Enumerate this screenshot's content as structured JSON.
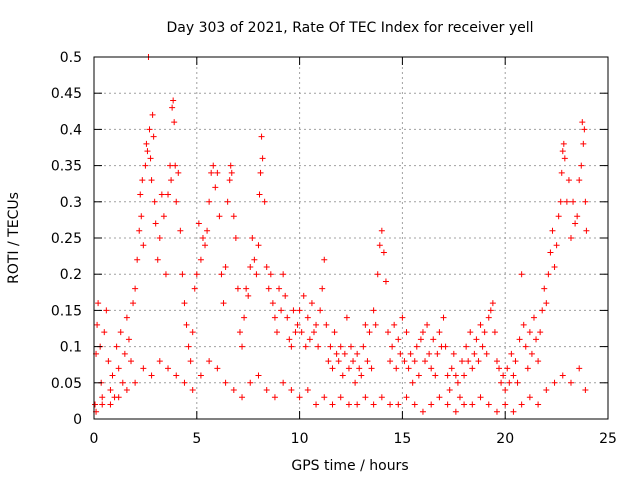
{
  "chart_data": {
    "type": "scatter",
    "title": "Day 303 of 2021, Rate Of TEC Index for receiver yell",
    "xlabel": "GPS time / hours",
    "ylabel": "ROTI / TECUs",
    "xlim": [
      0,
      25
    ],
    "ylim": [
      0,
      0.5
    ],
    "xticks": [
      0,
      5,
      10,
      15,
      20,
      25
    ],
    "yticks": [
      0,
      0.05,
      0.1,
      0.15,
      0.2,
      0.25,
      0.3,
      0.35,
      0.4,
      0.45,
      0.5
    ],
    "ytick_labels": [
      "0",
      "0.05",
      "0.1",
      "0.15",
      "0.2",
      "0.25",
      "0.3",
      "0.35",
      "0.4",
      "0.45",
      "0.5"
    ],
    "grid": true,
    "marker": "+",
    "color": "#ff0000",
    "series": [
      {
        "points": [
          [
            0.05,
            0.02
          ],
          [
            0.1,
            0.09
          ],
          [
            0.15,
            0.13
          ],
          [
            0.2,
            0.16
          ],
          [
            0.3,
            0.1
          ],
          [
            0.35,
            0.05
          ],
          [
            0.4,
            0.03
          ],
          [
            0.5,
            0.12
          ],
          [
            0.6,
            0.15
          ],
          [
            0.7,
            0.08
          ],
          [
            0.8,
            0.04
          ],
          [
            0.9,
            0.06
          ],
          [
            1.0,
            0.03
          ],
          [
            1.1,
            0.1
          ],
          [
            1.2,
            0.07
          ],
          [
            1.3,
            0.12
          ],
          [
            1.4,
            0.05
          ],
          [
            1.5,
            0.09
          ],
          [
            1.6,
            0.14
          ],
          [
            1.7,
            0.11
          ],
          [
            1.8,
            0.08
          ],
          [
            1.9,
            0.16
          ],
          [
            2.0,
            0.18
          ],
          [
            2.1,
            0.22
          ],
          [
            2.2,
            0.26
          ],
          [
            2.25,
            0.31
          ],
          [
            2.3,
            0.28
          ],
          [
            2.35,
            0.33
          ],
          [
            2.4,
            0.24
          ],
          [
            2.5,
            0.35
          ],
          [
            2.55,
            0.38
          ],
          [
            2.6,
            0.37
          ],
          [
            2.65,
            0.5
          ],
          [
            2.7,
            0.4
          ],
          [
            2.75,
            0.36
          ],
          [
            2.8,
            0.33
          ],
          [
            2.85,
            0.42
          ],
          [
            2.9,
            0.39
          ],
          [
            2.95,
            0.3
          ],
          [
            3.0,
            0.27
          ],
          [
            3.1,
            0.22
          ],
          [
            3.2,
            0.25
          ],
          [
            3.3,
            0.31
          ],
          [
            3.4,
            0.28
          ],
          [
            3.5,
            0.2
          ],
          [
            3.6,
            0.31
          ],
          [
            3.7,
            0.35
          ],
          [
            3.75,
            0.33
          ],
          [
            3.8,
            0.43
          ],
          [
            3.85,
            0.44
          ],
          [
            3.9,
            0.41
          ],
          [
            3.95,
            0.35
          ],
          [
            4.0,
            0.3
          ],
          [
            4.1,
            0.34
          ],
          [
            4.2,
            0.26
          ],
          [
            4.3,
            0.2
          ],
          [
            4.4,
            0.16
          ],
          [
            4.5,
            0.13
          ],
          [
            4.6,
            0.1
          ],
          [
            4.7,
            0.08
          ],
          [
            4.8,
            0.12
          ],
          [
            4.9,
            0.18
          ],
          [
            5.0,
            0.2
          ],
          [
            5.1,
            0.27
          ],
          [
            5.2,
            0.22
          ],
          [
            5.3,
            0.25
          ],
          [
            5.4,
            0.24
          ],
          [
            5.5,
            0.26
          ],
          [
            5.6,
            0.3
          ],
          [
            5.7,
            0.34
          ],
          [
            5.8,
            0.35
          ],
          [
            5.9,
            0.32
          ],
          [
            6.0,
            0.34
          ],
          [
            6.1,
            0.28
          ],
          [
            6.2,
            0.2
          ],
          [
            6.3,
            0.16
          ],
          [
            6.4,
            0.21
          ],
          [
            6.5,
            0.3
          ],
          [
            6.6,
            0.33
          ],
          [
            6.65,
            0.35
          ],
          [
            6.7,
            0.34
          ],
          [
            6.8,
            0.28
          ],
          [
            6.9,
            0.25
          ],
          [
            7.0,
            0.18
          ],
          [
            7.1,
            0.12
          ],
          [
            7.2,
            0.1
          ],
          [
            7.3,
            0.14
          ],
          [
            7.4,
            0.18
          ],
          [
            7.5,
            0.17
          ],
          [
            7.6,
            0.21
          ],
          [
            7.7,
            0.25
          ],
          [
            7.8,
            0.22
          ],
          [
            7.9,
            0.2
          ],
          [
            8.0,
            0.24
          ],
          [
            8.05,
            0.31
          ],
          [
            8.1,
            0.34
          ],
          [
            8.15,
            0.39
          ],
          [
            8.2,
            0.36
          ],
          [
            8.3,
            0.3
          ],
          [
            8.4,
            0.21
          ],
          [
            8.5,
            0.18
          ],
          [
            8.6,
            0.2
          ],
          [
            8.7,
            0.16
          ],
          [
            8.8,
            0.14
          ],
          [
            8.9,
            0.12
          ],
          [
            9.0,
            0.18
          ],
          [
            9.1,
            0.15
          ],
          [
            9.2,
            0.2
          ],
          [
            9.3,
            0.17
          ],
          [
            9.4,
            0.14
          ],
          [
            9.5,
            0.11
          ],
          [
            9.6,
            0.1
          ],
          [
            9.7,
            0.15
          ],
          [
            9.8,
            0.12
          ],
          [
            9.9,
            0.13
          ],
          [
            10.0,
            0.15
          ],
          [
            10.1,
            0.12
          ],
          [
            10.2,
            0.17
          ],
          [
            10.3,
            0.1
          ],
          [
            10.4,
            0.14
          ],
          [
            10.5,
            0.11
          ],
          [
            10.6,
            0.16
          ],
          [
            10.7,
            0.12
          ],
          [
            10.8,
            0.13
          ],
          [
            10.9,
            0.1
          ],
          [
            11.0,
            0.15
          ],
          [
            11.1,
            0.18
          ],
          [
            11.2,
            0.22
          ],
          [
            11.3,
            0.13
          ],
          [
            11.4,
            0.08
          ],
          [
            11.5,
            0.1
          ],
          [
            11.6,
            0.07
          ],
          [
            11.7,
            0.12
          ],
          [
            11.8,
            0.09
          ],
          [
            11.9,
            0.08
          ],
          [
            12.0,
            0.1
          ],
          [
            12.1,
            0.06
          ],
          [
            12.2,
            0.09
          ],
          [
            12.3,
            0.14
          ],
          [
            12.4,
            0.07
          ],
          [
            12.5,
            0.1
          ],
          [
            12.6,
            0.08
          ],
          [
            12.7,
            0.05
          ],
          [
            12.8,
            0.09
          ],
          [
            12.9,
            0.07
          ],
          [
            13.0,
            0.06
          ],
          [
            13.1,
            0.1
          ],
          [
            13.2,
            0.13
          ],
          [
            13.3,
            0.08
          ],
          [
            13.4,
            0.12
          ],
          [
            13.5,
            0.07
          ],
          [
            13.6,
            0.15
          ],
          [
            13.7,
            0.13
          ],
          [
            13.8,
            0.2
          ],
          [
            13.9,
            0.24
          ],
          [
            14.0,
            0.26
          ],
          [
            14.1,
            0.23
          ],
          [
            14.2,
            0.19
          ],
          [
            14.3,
            0.12
          ],
          [
            14.4,
            0.08
          ],
          [
            14.5,
            0.1
          ],
          [
            14.6,
            0.13
          ],
          [
            14.7,
            0.07
          ],
          [
            14.8,
            0.11
          ],
          [
            14.9,
            0.09
          ],
          [
            15.0,
            0.14
          ],
          [
            15.1,
            0.08
          ],
          [
            15.2,
            0.12
          ],
          [
            15.3,
            0.07
          ],
          [
            15.4,
            0.09
          ],
          [
            15.5,
            0.05
          ],
          [
            15.6,
            0.08
          ],
          [
            15.7,
            0.1
          ],
          [
            15.8,
            0.06
          ],
          [
            15.9,
            0.11
          ],
          [
            16.0,
            0.12
          ],
          [
            16.1,
            0.08
          ],
          [
            16.2,
            0.13
          ],
          [
            16.3,
            0.09
          ],
          [
            16.4,
            0.07
          ],
          [
            16.5,
            0.11
          ],
          [
            16.6,
            0.06
          ],
          [
            16.7,
            0.09
          ],
          [
            16.8,
            0.12
          ],
          [
            16.9,
            0.1
          ],
          [
            17.0,
            0.14
          ],
          [
            17.1,
            0.1
          ],
          [
            17.2,
            0.06
          ],
          [
            17.3,
            0.04
          ],
          [
            17.4,
            0.07
          ],
          [
            17.5,
            0.09
          ],
          [
            17.6,
            0.06
          ],
          [
            17.7,
            0.05
          ],
          [
            17.8,
            0.03
          ],
          [
            17.9,
            0.08
          ],
          [
            18.0,
            0.06
          ],
          [
            18.1,
            0.1
          ],
          [
            18.2,
            0.08
          ],
          [
            18.3,
            0.12
          ],
          [
            18.4,
            0.07
          ],
          [
            18.5,
            0.09
          ],
          [
            18.6,
            0.11
          ],
          [
            18.7,
            0.08
          ],
          [
            18.8,
            0.13
          ],
          [
            18.9,
            0.1
          ],
          [
            19.0,
            0.12
          ],
          [
            19.1,
            0.09
          ],
          [
            19.2,
            0.14
          ],
          [
            19.3,
            0.15
          ],
          [
            19.4,
            0.16
          ],
          [
            19.5,
            0.12
          ],
          [
            19.6,
            0.08
          ],
          [
            19.7,
            0.07
          ],
          [
            19.8,
            0.05
          ],
          [
            19.9,
            0.06
          ],
          [
            20.0,
            0.04
          ],
          [
            20.1,
            0.07
          ],
          [
            20.2,
            0.05
          ],
          [
            20.3,
            0.09
          ],
          [
            20.4,
            0.06
          ],
          [
            20.5,
            0.08
          ],
          [
            20.6,
            0.05
          ],
          [
            20.7,
            0.11
          ],
          [
            20.8,
            0.2
          ],
          [
            20.9,
            0.13
          ],
          [
            21.0,
            0.1
          ],
          [
            21.1,
            0.07
          ],
          [
            21.2,
            0.12
          ],
          [
            21.3,
            0.09
          ],
          [
            21.4,
            0.14
          ],
          [
            21.5,
            0.11
          ],
          [
            21.6,
            0.08
          ],
          [
            21.7,
            0.12
          ],
          [
            21.8,
            0.15
          ],
          [
            21.9,
            0.18
          ],
          [
            22.0,
            0.16
          ],
          [
            22.1,
            0.2
          ],
          [
            22.2,
            0.23
          ],
          [
            22.3,
            0.26
          ],
          [
            22.4,
            0.21
          ],
          [
            22.5,
            0.24
          ],
          [
            22.6,
            0.28
          ],
          [
            22.7,
            0.3
          ],
          [
            22.75,
            0.34
          ],
          [
            22.8,
            0.37
          ],
          [
            22.85,
            0.38
          ],
          [
            22.9,
            0.36
          ],
          [
            23.0,
            0.3
          ],
          [
            23.1,
            0.33
          ],
          [
            23.2,
            0.25
          ],
          [
            23.3,
            0.3
          ],
          [
            23.4,
            0.27
          ],
          [
            23.5,
            0.28
          ],
          [
            23.6,
            0.33
          ],
          [
            23.7,
            0.35
          ],
          [
            23.75,
            0.41
          ],
          [
            23.8,
            0.38
          ],
          [
            23.85,
            0.4
          ],
          [
            23.9,
            0.3
          ],
          [
            23.95,
            0.26
          ],
          [
            0.1,
            0.01
          ],
          [
            0.4,
            0.02
          ],
          [
            0.8,
            0.02
          ],
          [
            1.2,
            0.03
          ],
          [
            1.6,
            0.04
          ],
          [
            2.0,
            0.05
          ],
          [
            2.4,
            0.07
          ],
          [
            2.8,
            0.06
          ],
          [
            3.2,
            0.08
          ],
          [
            3.6,
            0.07
          ],
          [
            4.0,
            0.06
          ],
          [
            4.4,
            0.05
          ],
          [
            4.8,
            0.04
          ],
          [
            5.2,
            0.06
          ],
          [
            5.6,
            0.08
          ],
          [
            6.0,
            0.07
          ],
          [
            6.4,
            0.05
          ],
          [
            6.8,
            0.04
          ],
          [
            7.2,
            0.03
          ],
          [
            7.6,
            0.05
          ],
          [
            8.0,
            0.06
          ],
          [
            8.4,
            0.04
          ],
          [
            8.8,
            0.03
          ],
          [
            9.2,
            0.05
          ],
          [
            9.6,
            0.04
          ],
          [
            10.0,
            0.03
          ],
          [
            10.4,
            0.04
          ],
          [
            10.8,
            0.02
          ],
          [
            11.2,
            0.03
          ],
          [
            11.6,
            0.02
          ],
          [
            12.0,
            0.03
          ],
          [
            12.4,
            0.02
          ],
          [
            12.8,
            0.02
          ],
          [
            13.2,
            0.03
          ],
          [
            13.6,
            0.02
          ],
          [
            14.0,
            0.03
          ],
          [
            14.4,
            0.02
          ],
          [
            14.8,
            0.02
          ],
          [
            15.2,
            0.03
          ],
          [
            15.6,
            0.02
          ],
          [
            16.0,
            0.01
          ],
          [
            16.4,
            0.02
          ],
          [
            16.8,
            0.03
          ],
          [
            17.2,
            0.02
          ],
          [
            17.6,
            0.01
          ],
          [
            18.0,
            0.02
          ],
          [
            18.4,
            0.02
          ],
          [
            18.8,
            0.03
          ],
          [
            19.2,
            0.02
          ],
          [
            19.6,
            0.01
          ],
          [
            20.0,
            0.02
          ],
          [
            20.4,
            0.01
          ],
          [
            20.8,
            0.02
          ],
          [
            21.2,
            0.03
          ],
          [
            21.6,
            0.02
          ],
          [
            22.0,
            0.04
          ],
          [
            22.4,
            0.05
          ],
          [
            22.8,
            0.06
          ],
          [
            23.2,
            0.05
          ],
          [
            23.6,
            0.07
          ],
          [
            23.9,
            0.04
          ]
        ]
      }
    ]
  }
}
